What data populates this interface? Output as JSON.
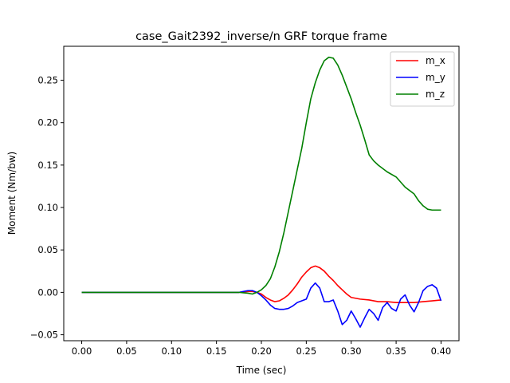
{
  "chart_data": {
    "type": "line",
    "title": "case_Gait2392_inverse/n GRF torque frame",
    "xlabel": "Time (sec)",
    "ylabel": "Moment (Nm/bw)",
    "xlim": [
      -0.02,
      0.42
    ],
    "ylim": [
      -0.057,
      0.29
    ],
    "xticks": [
      "0.00",
      "0.05",
      "0.10",
      "0.15",
      "0.20",
      "0.25",
      "0.30",
      "0.35",
      "0.40"
    ],
    "yticks": [
      "−0.05",
      "0.00",
      "0.05",
      "0.10",
      "0.15",
      "0.20",
      "0.25"
    ],
    "grid": false,
    "legend_position": "top-right",
    "series": [
      {
        "name": "m_x",
        "color": "#ff0000",
        "x": [
          0.0,
          0.1,
          0.175,
          0.18,
          0.185,
          0.19,
          0.195,
          0.2,
          0.205,
          0.21,
          0.215,
          0.22,
          0.225,
          0.23,
          0.235,
          0.24,
          0.245,
          0.25,
          0.255,
          0.26,
          0.265,
          0.27,
          0.275,
          0.28,
          0.285,
          0.29,
          0.295,
          0.3,
          0.31,
          0.32,
          0.33,
          0.34,
          0.35,
          0.36,
          0.37,
          0.38,
          0.39,
          0.4
        ],
        "y": [
          0.0,
          0.0,
          0.0,
          0.0005,
          0.001,
          0.001,
          0.0,
          -0.002,
          -0.006,
          -0.009,
          -0.011,
          -0.01,
          -0.007,
          -0.003,
          0.003,
          0.01,
          0.018,
          0.024,
          0.029,
          0.031,
          0.029,
          0.025,
          0.019,
          0.014,
          0.008,
          0.003,
          -0.002,
          -0.006,
          -0.008,
          -0.009,
          -0.011,
          -0.011,
          -0.012,
          -0.012,
          -0.012,
          -0.011,
          -0.01,
          -0.009
        ]
      },
      {
        "name": "m_y",
        "color": "#0000ff",
        "x": [
          0.0,
          0.1,
          0.175,
          0.18,
          0.185,
          0.19,
          0.195,
          0.2,
          0.205,
          0.21,
          0.215,
          0.22,
          0.225,
          0.23,
          0.235,
          0.24,
          0.245,
          0.25,
          0.255,
          0.26,
          0.265,
          0.27,
          0.275,
          0.28,
          0.285,
          0.29,
          0.295,
          0.3,
          0.305,
          0.31,
          0.315,
          0.32,
          0.325,
          0.33,
          0.335,
          0.34,
          0.345,
          0.35,
          0.355,
          0.36,
          0.365,
          0.37,
          0.375,
          0.38,
          0.385,
          0.39,
          0.395,
          0.4
        ],
        "y": [
          0.0,
          0.0,
          0.0,
          0.001,
          0.002,
          0.002,
          0.0,
          -0.004,
          -0.009,
          -0.015,
          -0.019,
          -0.02,
          -0.02,
          -0.019,
          -0.016,
          -0.012,
          -0.01,
          -0.008,
          0.005,
          0.011,
          0.005,
          -0.011,
          -0.011,
          -0.009,
          -0.022,
          -0.038,
          -0.033,
          -0.022,
          -0.031,
          -0.041,
          -0.03,
          -0.02,
          -0.025,
          -0.033,
          -0.018,
          -0.012,
          -0.019,
          -0.022,
          -0.008,
          -0.003,
          -0.015,
          -0.023,
          -0.012,
          0.002,
          0.007,
          0.009,
          0.005,
          -0.01
        ]
      },
      {
        "name": "m_z",
        "color": "#008000",
        "x": [
          0.0,
          0.1,
          0.175,
          0.18,
          0.185,
          0.19,
          0.195,
          0.2,
          0.205,
          0.21,
          0.215,
          0.22,
          0.225,
          0.23,
          0.235,
          0.24,
          0.245,
          0.25,
          0.255,
          0.26,
          0.265,
          0.27,
          0.275,
          0.28,
          0.285,
          0.29,
          0.295,
          0.3,
          0.305,
          0.31,
          0.315,
          0.32,
          0.325,
          0.33,
          0.335,
          0.34,
          0.35,
          0.36,
          0.37,
          0.375,
          0.38,
          0.385,
          0.39,
          0.395,
          0.4
        ],
        "y": [
          0.0,
          0.0,
          0.0,
          -0.0005,
          -0.001,
          -0.002,
          0.0,
          0.003,
          0.008,
          0.016,
          0.03,
          0.048,
          0.07,
          0.095,
          0.12,
          0.145,
          0.17,
          0.2,
          0.228,
          0.247,
          0.262,
          0.273,
          0.277,
          0.276,
          0.268,
          0.256,
          0.242,
          0.228,
          0.212,
          0.197,
          0.18,
          0.162,
          0.155,
          0.15,
          0.146,
          0.142,
          0.136,
          0.124,
          0.116,
          0.108,
          0.102,
          0.098,
          0.097,
          0.097,
          0.097
        ]
      }
    ]
  }
}
